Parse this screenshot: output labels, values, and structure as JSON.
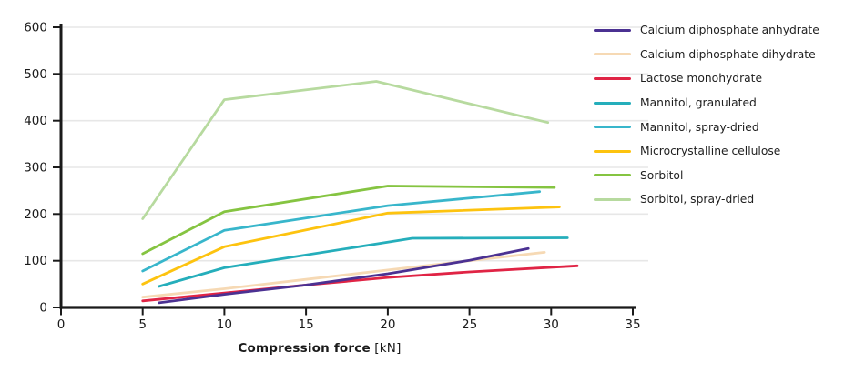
{
  "chart_data": {
    "type": "line",
    "title": "",
    "xlabel": "Compression force",
    "xlabel_unit": "[kN]",
    "ylabel": "",
    "xlim": [
      0,
      35
    ],
    "ylim": [
      0,
      600
    ],
    "xticks": [
      0,
      5,
      10,
      15,
      20,
      25,
      30,
      35
    ],
    "yticks": [
      0,
      100,
      200,
      300,
      400,
      500,
      600
    ],
    "grid": "horizontal",
    "legend_position": "right",
    "series": [
      {
        "name": "Calcium diphosphate anhydrate",
        "color": "#4b3192",
        "points": [
          [
            6,
            10
          ],
          [
            10,
            28
          ],
          [
            15,
            48
          ],
          [
            20,
            72
          ],
          [
            25,
            101
          ],
          [
            28.6,
            126
          ]
        ]
      },
      {
        "name": "Calcium diphosphate dihydrate",
        "color": "#f6d9b4",
        "points": [
          [
            5,
            22
          ],
          [
            10,
            40
          ],
          [
            15,
            60
          ],
          [
            20,
            80
          ],
          [
            25,
            100
          ],
          [
            29.6,
            118
          ]
        ]
      },
      {
        "name": "Lactose monohydrate",
        "color": "#e02445",
        "points": [
          [
            5,
            14
          ],
          [
            10,
            31
          ],
          [
            15,
            48
          ],
          [
            20,
            64
          ],
          [
            25,
            76
          ],
          [
            31.6,
            89
          ]
        ]
      },
      {
        "name": "Mannitol, granulated",
        "color": "#25aebb",
        "points": [
          [
            6,
            45
          ],
          [
            10,
            85
          ],
          [
            21.5,
            148
          ],
          [
            31,
            149
          ]
        ]
      },
      {
        "name": "Mannitol, spray-dried",
        "color": "#38b6cb",
        "points": [
          [
            5,
            78
          ],
          [
            10,
            165
          ],
          [
            20,
            218
          ],
          [
            29.3,
            248
          ]
        ]
      },
      {
        "name": "Microcrystalline cellulose",
        "color": "#fdc30f",
        "points": [
          [
            5,
            50
          ],
          [
            10,
            130
          ],
          [
            20,
            202
          ],
          [
            30.5,
            215
          ]
        ]
      },
      {
        "name": "Sorbitol",
        "color": "#85c441",
        "points": [
          [
            5,
            115
          ],
          [
            10,
            205
          ],
          [
            20,
            260
          ],
          [
            30.2,
            257
          ]
        ]
      },
      {
        "name": "Sorbitol, spray-dried",
        "color": "#b7da9f",
        "points": [
          [
            5,
            190
          ],
          [
            10,
            445
          ],
          [
            19.3,
            484
          ],
          [
            29.8,
            396
          ]
        ]
      }
    ]
  },
  "colors": {
    "axis": "#1a1a1a",
    "grid": "#e7e7e7",
    "tick_text": "#1a1a1a",
    "background": "#ffffff"
  }
}
